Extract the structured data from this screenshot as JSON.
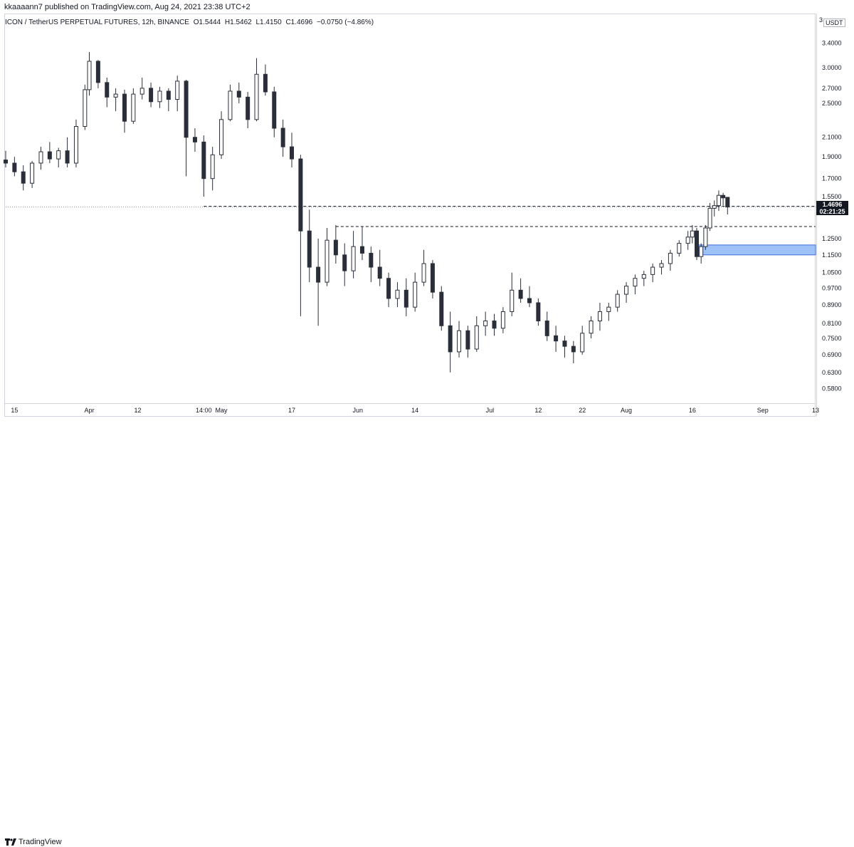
{
  "header": {
    "published": "kkaaaann7 published on TradingView.com, Aug 24, 2021 23:38 UTC+2",
    "symbol": "ICON / TetherUS PERPETUAL FUTURES, 12h, BINANCE",
    "open": "O1.5444",
    "high": "H1.5462",
    "low": "L1.4150",
    "close": "C1.4696",
    "change": "−0.0750 (−4.86%)"
  },
  "price_axis": {
    "unit": "USDT",
    "unit_sup": "3",
    "ticks": [
      "3.4000",
      "3.0000",
      "2.7000",
      "2.5000",
      "2.1000",
      "1.9000",
      "1.7000",
      "1.5500",
      "1.2500",
      "1.1500",
      "1.0500",
      "0.9700",
      "0.8900",
      "0.8100",
      "0.7500",
      "0.6900",
      "0.6300",
      "0.5800"
    ]
  },
  "last_price": {
    "value": "1.4696",
    "countdown": "02:21:25"
  },
  "time_axis": {
    "ticks": [
      "15",
      "Apr",
      "12",
      "14:00",
      "May",
      "17",
      "Jun",
      "14",
      "Jul",
      "12",
      "22",
      "Aug",
      "16",
      "Sep",
      "13"
    ]
  },
  "footer": {
    "brand": "TradingView"
  },
  "colors": {
    "candle": "#2a2e39",
    "support_zone": "#9ec1f7",
    "support_zone_border": "#3d6fe0",
    "dashed_line": "#131722",
    "grid": "#d1d4dc"
  },
  "chart_data": {
    "type": "candlestick",
    "title": "ICON / TetherUS PERPETUAL FUTURES, 12h, BINANCE",
    "yscale": "log",
    "ylim": [
      0.55,
      3.6
    ],
    "x_range": [
      "2021-03-13",
      "2021-09-13"
    ],
    "last_price": 1.4696,
    "horizontal_levels": [
      1.475,
      1.33
    ],
    "zone": {
      "price_low": 1.15,
      "price_high": 1.21,
      "from": "2021-08-17",
      "to": "2021-09-13"
    },
    "candles": [
      {
        "t": "2021-03-13",
        "o": 1.87,
        "h": 1.96,
        "l": 1.8,
        "c": 1.84
      },
      {
        "t": "2021-03-15",
        "o": 1.84,
        "h": 1.9,
        "l": 1.72,
        "c": 1.76
      },
      {
        "t": "2021-03-17",
        "o": 1.76,
        "h": 1.82,
        "l": 1.6,
        "c": 1.66
      },
      {
        "t": "2021-03-19",
        "o": 1.66,
        "h": 1.86,
        "l": 1.62,
        "c": 1.84
      },
      {
        "t": "2021-03-21",
        "o": 1.84,
        "h": 2.0,
        "l": 1.78,
        "c": 1.95
      },
      {
        "t": "2021-03-23",
        "o": 1.95,
        "h": 2.05,
        "l": 1.84,
        "c": 1.88
      },
      {
        "t": "2021-03-25",
        "o": 1.88,
        "h": 1.99,
        "l": 1.8,
        "c": 1.96
      },
      {
        "t": "2021-03-27",
        "o": 1.96,
        "h": 2.1,
        "l": 1.8,
        "c": 1.84
      },
      {
        "t": "2021-03-29",
        "o": 1.84,
        "h": 2.3,
        "l": 1.8,
        "c": 2.22
      },
      {
        "t": "2021-03-31",
        "o": 2.22,
        "h": 2.75,
        "l": 2.18,
        "c": 2.68
      },
      {
        "t": "2021-04-01",
        "o": 2.68,
        "h": 3.25,
        "l": 2.6,
        "c": 3.1
      },
      {
        "t": "2021-04-03",
        "o": 3.1,
        "h": 3.12,
        "l": 2.7,
        "c": 2.78
      },
      {
        "t": "2021-04-05",
        "o": 2.78,
        "h": 2.85,
        "l": 2.45,
        "c": 2.58
      },
      {
        "t": "2021-04-07",
        "o": 2.58,
        "h": 2.7,
        "l": 2.4,
        "c": 2.62
      },
      {
        "t": "2021-04-09",
        "o": 2.62,
        "h": 2.68,
        "l": 2.15,
        "c": 2.28
      },
      {
        "t": "2021-04-11",
        "o": 2.28,
        "h": 2.7,
        "l": 2.25,
        "c": 2.62
      },
      {
        "t": "2021-04-13",
        "o": 2.62,
        "h": 2.85,
        "l": 2.55,
        "c": 2.7
      },
      {
        "t": "2021-04-15",
        "o": 2.7,
        "h": 2.78,
        "l": 2.45,
        "c": 2.52
      },
      {
        "t": "2021-04-17",
        "o": 2.52,
        "h": 2.72,
        "l": 2.44,
        "c": 2.66
      },
      {
        "t": "2021-04-19",
        "o": 2.66,
        "h": 2.7,
        "l": 2.4,
        "c": 2.55
      },
      {
        "t": "2021-04-21",
        "o": 2.55,
        "h": 2.88,
        "l": 2.4,
        "c": 2.8
      },
      {
        "t": "2021-04-23",
        "o": 2.8,
        "h": 2.82,
        "l": 1.72,
        "c": 2.1
      },
      {
        "t": "2021-04-25",
        "o": 2.1,
        "h": 2.2,
        "l": 1.95,
        "c": 2.05
      },
      {
        "t": "2021-04-27",
        "o": 2.05,
        "h": 2.12,
        "l": 1.55,
        "c": 1.7
      },
      {
        "t": "2021-04-29",
        "o": 1.7,
        "h": 2.0,
        "l": 1.6,
        "c": 1.92
      },
      {
        "t": "2021-05-01",
        "o": 1.92,
        "h": 2.4,
        "l": 1.88,
        "c": 2.3
      },
      {
        "t": "2021-05-03",
        "o": 2.3,
        "h": 2.75,
        "l": 2.28,
        "c": 2.66
      },
      {
        "t": "2021-05-05",
        "o": 2.66,
        "h": 2.78,
        "l": 2.5,
        "c": 2.58
      },
      {
        "t": "2021-05-07",
        "o": 2.58,
        "h": 2.65,
        "l": 2.2,
        "c": 2.3
      },
      {
        "t": "2021-05-09",
        "o": 2.3,
        "h": 3.15,
        "l": 2.28,
        "c": 2.9
      },
      {
        "t": "2021-05-11",
        "o": 2.9,
        "h": 3.05,
        "l": 2.6,
        "c": 2.65
      },
      {
        "t": "2021-05-13",
        "o": 2.65,
        "h": 2.72,
        "l": 2.1,
        "c": 2.2
      },
      {
        "t": "2021-05-15",
        "o": 2.2,
        "h": 2.3,
        "l": 1.9,
        "c": 2.0
      },
      {
        "t": "2021-05-17",
        "o": 2.0,
        "h": 2.15,
        "l": 1.8,
        "c": 1.88
      },
      {
        "t": "2021-05-19",
        "o": 1.88,
        "h": 1.92,
        "l": 0.84,
        "c": 1.3
      },
      {
        "t": "2021-05-21",
        "o": 1.3,
        "h": 1.45,
        "l": 1.0,
        "c": 1.08
      },
      {
        "t": "2021-05-23",
        "o": 1.08,
        "h": 1.25,
        "l": 0.8,
        "c": 1.0
      },
      {
        "t": "2021-05-25",
        "o": 1.0,
        "h": 1.32,
        "l": 0.98,
        "c": 1.24
      },
      {
        "t": "2021-05-27",
        "o": 1.24,
        "h": 1.34,
        "l": 1.1,
        "c": 1.15
      },
      {
        "t": "2021-05-29",
        "o": 1.15,
        "h": 1.22,
        "l": 0.98,
        "c": 1.06
      },
      {
        "t": "2021-05-31",
        "o": 1.06,
        "h": 1.3,
        "l": 1.02,
        "c": 1.2
      },
      {
        "t": "2021-06-02",
        "o": 1.2,
        "h": 1.33,
        "l": 1.12,
        "c": 1.16
      },
      {
        "t": "2021-06-04",
        "o": 1.16,
        "h": 1.2,
        "l": 1.0,
        "c": 1.08
      },
      {
        "t": "2021-06-06",
        "o": 1.08,
        "h": 1.18,
        "l": 0.98,
        "c": 1.02
      },
      {
        "t": "2021-06-08",
        "o": 1.02,
        "h": 1.05,
        "l": 0.88,
        "c": 0.92
      },
      {
        "t": "2021-06-10",
        "o": 0.92,
        "h": 1.0,
        "l": 0.88,
        "c": 0.96
      },
      {
        "t": "2021-06-12",
        "o": 0.96,
        "h": 1.02,
        "l": 0.84,
        "c": 0.88
      },
      {
        "t": "2021-06-14",
        "o": 0.88,
        "h": 1.05,
        "l": 0.86,
        "c": 1.0
      },
      {
        "t": "2021-06-16",
        "o": 1.0,
        "h": 1.18,
        "l": 0.98,
        "c": 1.1
      },
      {
        "t": "2021-06-18",
        "o": 1.1,
        "h": 1.12,
        "l": 0.92,
        "c": 0.95
      },
      {
        "t": "2021-06-20",
        "o": 0.95,
        "h": 0.98,
        "l": 0.78,
        "c": 0.8
      },
      {
        "t": "2021-06-22",
        "o": 0.8,
        "h": 0.86,
        "l": 0.63,
        "c": 0.7
      },
      {
        "t": "2021-06-24",
        "o": 0.7,
        "h": 0.82,
        "l": 0.68,
        "c": 0.78
      },
      {
        "t": "2021-06-26",
        "o": 0.78,
        "h": 0.8,
        "l": 0.68,
        "c": 0.71
      },
      {
        "t": "2021-06-28",
        "o": 0.71,
        "h": 0.84,
        "l": 0.7,
        "c": 0.8
      },
      {
        "t": "2021-06-30",
        "o": 0.8,
        "h": 0.86,
        "l": 0.76,
        "c": 0.82
      },
      {
        "t": "2021-07-02",
        "o": 0.82,
        "h": 0.85,
        "l": 0.76,
        "c": 0.79
      },
      {
        "t": "2021-07-04",
        "o": 0.79,
        "h": 0.88,
        "l": 0.77,
        "c": 0.86
      },
      {
        "t": "2021-07-06",
        "o": 0.86,
        "h": 1.05,
        "l": 0.84,
        "c": 0.96
      },
      {
        "t": "2021-07-08",
        "o": 0.96,
        "h": 1.02,
        "l": 0.9,
        "c": 0.92
      },
      {
        "t": "2021-07-10",
        "o": 0.92,
        "h": 0.98,
        "l": 0.88,
        "c": 0.9
      },
      {
        "t": "2021-07-12",
        "o": 0.9,
        "h": 0.92,
        "l": 0.8,
        "c": 0.82
      },
      {
        "t": "2021-07-14",
        "o": 0.82,
        "h": 0.86,
        "l": 0.74,
        "c": 0.76
      },
      {
        "t": "2021-07-16",
        "o": 0.76,
        "h": 0.8,
        "l": 0.7,
        "c": 0.74
      },
      {
        "t": "2021-07-18",
        "o": 0.74,
        "h": 0.76,
        "l": 0.68,
        "c": 0.72
      },
      {
        "t": "2021-07-20",
        "o": 0.72,
        "h": 0.74,
        "l": 0.66,
        "c": 0.7
      },
      {
        "t": "2021-07-22",
        "o": 0.7,
        "h": 0.8,
        "l": 0.69,
        "c": 0.77
      },
      {
        "t": "2021-07-24",
        "o": 0.77,
        "h": 0.84,
        "l": 0.75,
        "c": 0.82
      },
      {
        "t": "2021-07-26",
        "o": 0.82,
        "h": 0.9,
        "l": 0.78,
        "c": 0.86
      },
      {
        "t": "2021-07-28",
        "o": 0.86,
        "h": 0.9,
        "l": 0.82,
        "c": 0.88
      },
      {
        "t": "2021-07-30",
        "o": 0.88,
        "h": 0.96,
        "l": 0.86,
        "c": 0.94
      },
      {
        "t": "2021-08-01",
        "o": 0.94,
        "h": 1.0,
        "l": 0.9,
        "c": 0.98
      },
      {
        "t": "2021-08-03",
        "o": 0.98,
        "h": 1.04,
        "l": 0.94,
        "c": 1.02
      },
      {
        "t": "2021-08-05",
        "o": 1.02,
        "h": 1.06,
        "l": 0.98,
        "c": 1.04
      },
      {
        "t": "2021-08-07",
        "o": 1.04,
        "h": 1.1,
        "l": 1.0,
        "c": 1.08
      },
      {
        "t": "2021-08-09",
        "o": 1.08,
        "h": 1.12,
        "l": 1.04,
        "c": 1.1
      },
      {
        "t": "2021-08-11",
        "o": 1.1,
        "h": 1.18,
        "l": 1.06,
        "c": 1.16
      },
      {
        "t": "2021-08-13",
        "o": 1.16,
        "h": 1.24,
        "l": 1.14,
        "c": 1.22
      },
      {
        "t": "2021-08-15",
        "o": 1.22,
        "h": 1.3,
        "l": 1.18,
        "c": 1.26
      },
      {
        "t": "2021-08-16",
        "o": 1.26,
        "h": 1.34,
        "l": 1.22,
        "c": 1.3
      },
      {
        "t": "2021-08-17",
        "o": 1.3,
        "h": 1.32,
        "l": 1.12,
        "c": 1.14
      },
      {
        "t": "2021-08-18",
        "o": 1.14,
        "h": 1.22,
        "l": 1.1,
        "c": 1.2
      },
      {
        "t": "2021-08-19",
        "o": 1.2,
        "h": 1.34,
        "l": 1.18,
        "c": 1.32
      },
      {
        "t": "2021-08-20",
        "o": 1.32,
        "h": 1.5,
        "l": 1.3,
        "c": 1.46
      },
      {
        "t": "2021-08-21",
        "o": 1.46,
        "h": 1.52,
        "l": 1.4,
        "c": 1.48
      },
      {
        "t": "2021-08-22",
        "o": 1.48,
        "h": 1.6,
        "l": 1.44,
        "c": 1.56
      },
      {
        "t": "2021-08-23",
        "o": 1.56,
        "h": 1.58,
        "l": 1.48,
        "c": 1.54
      },
      {
        "t": "2021-08-24",
        "o": 1.5444,
        "h": 1.5462,
        "l": 1.415,
        "c": 1.4696
      }
    ]
  }
}
